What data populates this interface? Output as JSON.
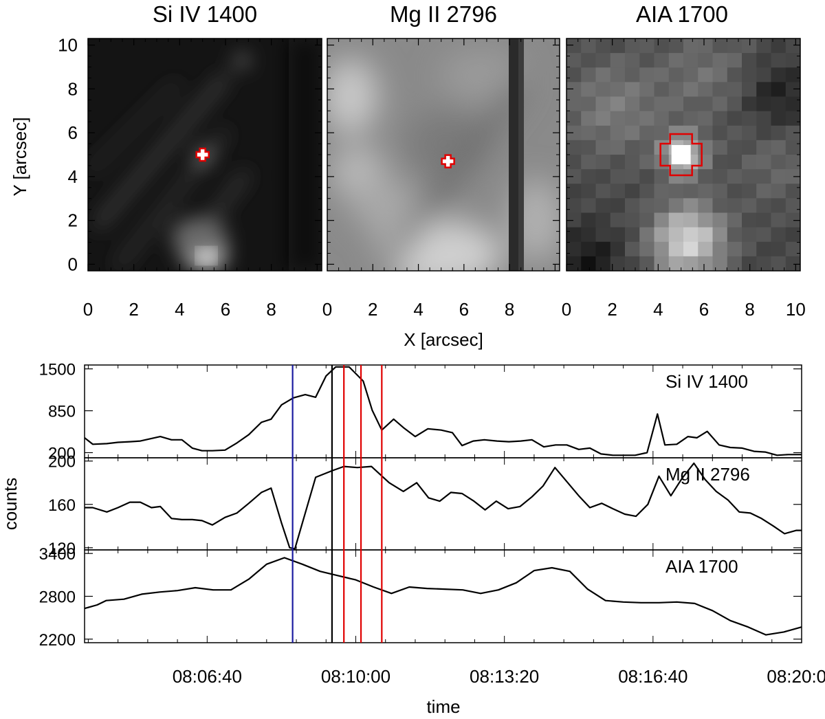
{
  "image_panels": {
    "xlabel": "X [arcsec]",
    "ylabel": "Y [arcsec]",
    "tick_labels": [
      "0",
      "2",
      "4",
      "6",
      "8",
      "10"
    ],
    "panels": [
      {
        "title": "Si IV 1400",
        "xlim": [
          0,
          10.2
        ],
        "ylim": [
          -0.3,
          10.3
        ],
        "x_ticks": [
          "0",
          "2",
          "4",
          "6",
          "8"
        ],
        "marker": {
          "x": 5.0,
          "y": 5.0,
          "color": "#e00000"
        }
      },
      {
        "title": "Mg II 2796",
        "xlim": [
          0,
          10.2
        ],
        "ylim": [
          -0.3,
          10.3
        ],
        "x_ticks": [
          "0",
          "2",
          "4",
          "6",
          "8"
        ],
        "marker": {
          "x": 5.3,
          "y": 4.7,
          "color": "#e00000"
        }
      },
      {
        "title": "AIA 1700",
        "xlim": [
          0,
          10.2
        ],
        "ylim": [
          -0.3,
          10.3
        ],
        "x_ticks": [
          "0",
          "2",
          "4",
          "6",
          "8",
          "10"
        ],
        "marker": {
          "x": 5.0,
          "y": 5.0,
          "color": "#e00000"
        }
      }
    ]
  },
  "chart_data": {
    "type": "line",
    "xlabel": "time",
    "ylabel": "counts",
    "x_unit": "clock time",
    "xlim": [
      "08:03:55",
      "08:20:00"
    ],
    "time_ticks": [
      "08:06:40",
      "08:10:00",
      "08:13:20",
      "08:16:40",
      "08:20:00"
    ],
    "vertical_lines": [
      {
        "time": "08:08:35",
        "color": "#1a1aa0"
      },
      {
        "time": "08:09:28",
        "color": "#000000"
      },
      {
        "time": "08:09:44",
        "color": "#e00000"
      },
      {
        "time": "08:10:07",
        "color": "#e00000"
      },
      {
        "time": "08:10:35",
        "color": "#e00000"
      }
    ],
    "series": [
      {
        "name": "Si IV 1400",
        "ylim": [
          120,
          1560
        ],
        "y_ticks": [
          "200",
          "850",
          "1500"
        ],
        "points": [
          [
            "08:03:55",
            430
          ],
          [
            "08:04:06",
            330
          ],
          [
            "08:04:25",
            340
          ],
          [
            "08:04:40",
            360
          ],
          [
            "08:04:56",
            370
          ],
          [
            "08:05:10",
            380
          ],
          [
            "08:05:25",
            420
          ],
          [
            "08:05:37",
            450
          ],
          [
            "08:05:52",
            400
          ],
          [
            "08:06:06",
            400
          ],
          [
            "08:06:20",
            270
          ],
          [
            "08:06:33",
            230
          ],
          [
            "08:06:47",
            230
          ],
          [
            "08:07:04",
            240
          ],
          [
            "08:07:20",
            350
          ],
          [
            "08:07:36",
            480
          ],
          [
            "08:07:53",
            670
          ],
          [
            "08:08:06",
            720
          ],
          [
            "08:08:20",
            940
          ],
          [
            "08:08:36",
            1050
          ],
          [
            "08:08:52",
            1100
          ],
          [
            "08:09:06",
            1060
          ],
          [
            "08:09:20",
            1390
          ],
          [
            "08:09:33",
            1530
          ],
          [
            "08:09:51",
            1530
          ],
          [
            "08:10:10",
            1310
          ],
          [
            "08:10:22",
            860
          ],
          [
            "08:10:35",
            550
          ],
          [
            "08:10:51",
            720
          ],
          [
            "08:11:05",
            580
          ],
          [
            "08:11:20",
            450
          ],
          [
            "08:11:37",
            570
          ],
          [
            "08:11:55",
            550
          ],
          [
            "08:12:10",
            510
          ],
          [
            "08:12:23",
            310
          ],
          [
            "08:12:38",
            380
          ],
          [
            "08:12:53",
            400
          ],
          [
            "08:13:10",
            380
          ],
          [
            "08:13:26",
            370
          ],
          [
            "08:13:42",
            380
          ],
          [
            "08:13:57",
            400
          ],
          [
            "08:14:13",
            290
          ],
          [
            "08:14:29",
            320
          ],
          [
            "08:14:44",
            320
          ],
          [
            "08:15:00",
            250
          ],
          [
            "08:15:15",
            270
          ],
          [
            "08:15:30",
            180
          ],
          [
            "08:15:46",
            160
          ],
          [
            "08:16:01",
            160
          ],
          [
            "08:16:16",
            160
          ],
          [
            "08:16:32",
            200
          ],
          [
            "08:16:46",
            800
          ],
          [
            "08:16:56",
            320
          ],
          [
            "08:17:12",
            330
          ],
          [
            "08:17:27",
            450
          ],
          [
            "08:17:39",
            430
          ],
          [
            "08:17:53",
            530
          ],
          [
            "08:18:09",
            320
          ],
          [
            "08:18:24",
            280
          ],
          [
            "08:18:40",
            270
          ],
          [
            "08:18:56",
            220
          ],
          [
            "08:19:11",
            210
          ],
          [
            "08:19:27",
            160
          ],
          [
            "08:19:42",
            170
          ],
          [
            "08:20:00",
            170
          ]
        ]
      },
      {
        "name": "Mg II 2796",
        "ylim": [
          118,
          203
        ],
        "y_ticks": [
          "120",
          "160",
          "200"
        ],
        "points": [
          [
            "08:03:55",
            157
          ],
          [
            "08:04:06",
            157
          ],
          [
            "08:04:25",
            153
          ],
          [
            "08:04:40",
            157
          ],
          [
            "08:04:56",
            162
          ],
          [
            "08:05:10",
            162
          ],
          [
            "08:05:25",
            157
          ],
          [
            "08:05:37",
            158
          ],
          [
            "08:05:52",
            147
          ],
          [
            "08:06:06",
            146
          ],
          [
            "08:06:20",
            146
          ],
          [
            "08:06:33",
            145
          ],
          [
            "08:06:47",
            141
          ],
          [
            "08:07:04",
            148
          ],
          [
            "08:07:20",
            152
          ],
          [
            "08:07:36",
            161
          ],
          [
            "08:07:53",
            171
          ],
          [
            "08:08:06",
            175
          ],
          [
            "08:08:20",
            143
          ],
          [
            "08:08:31",
            120
          ],
          [
            "08:08:38",
            119
          ],
          [
            "08:09:06",
            185
          ],
          [
            "08:09:28",
            191
          ],
          [
            "08:09:44",
            195
          ],
          [
            "08:10:02",
            194
          ],
          [
            "08:10:21",
            195
          ],
          [
            "08:10:45",
            180
          ],
          [
            "08:11:04",
            172
          ],
          [
            "08:11:22",
            180
          ],
          [
            "08:11:38",
            166
          ],
          [
            "08:11:53",
            163
          ],
          [
            "08:12:08",
            171
          ],
          [
            "08:12:23",
            170
          ],
          [
            "08:12:39",
            163
          ],
          [
            "08:12:54",
            155
          ],
          [
            "08:13:09",
            163
          ],
          [
            "08:13:25",
            156
          ],
          [
            "08:13:41",
            158
          ],
          [
            "08:13:57",
            167
          ],
          [
            "08:14:12",
            177
          ],
          [
            "08:14:28",
            194
          ],
          [
            "08:14:44",
            181
          ],
          [
            "08:15:00",
            168
          ],
          [
            "08:15:15",
            157
          ],
          [
            "08:15:31",
            161
          ],
          [
            "08:15:46",
            156
          ],
          [
            "08:16:02",
            151
          ],
          [
            "08:16:17",
            149
          ],
          [
            "08:16:33",
            160
          ],
          [
            "08:16:48",
            186
          ],
          [
            "08:17:04",
            168
          ],
          [
            "08:17:19",
            184
          ],
          [
            "08:17:35",
            198
          ],
          [
            "08:17:50",
            183
          ],
          [
            "08:18:05",
            172
          ],
          [
            "08:18:21",
            164
          ],
          [
            "08:18:36",
            153
          ],
          [
            "08:18:51",
            152
          ],
          [
            "08:19:06",
            147
          ],
          [
            "08:19:22",
            140
          ],
          [
            "08:19:37",
            133
          ],
          [
            "08:19:53",
            136
          ],
          [
            "08:20:00",
            136
          ]
        ]
      },
      {
        "name": "AIA 1700",
        "ylim": [
          2150,
          3450
        ],
        "y_ticks": [
          "2200",
          "2800",
          "3400"
        ],
        "points": [
          [
            "08:03:55",
            2630
          ],
          [
            "08:04:12",
            2680
          ],
          [
            "08:04:24",
            2740
          ],
          [
            "08:04:48",
            2760
          ],
          [
            "08:05:12",
            2830
          ],
          [
            "08:05:36",
            2860
          ],
          [
            "08:06:00",
            2880
          ],
          [
            "08:06:24",
            2920
          ],
          [
            "08:06:48",
            2890
          ],
          [
            "08:07:12",
            2890
          ],
          [
            "08:07:36",
            3040
          ],
          [
            "08:08:00",
            3250
          ],
          [
            "08:08:24",
            3340
          ],
          [
            "08:08:48",
            3250
          ],
          [
            "08:09:12",
            3150
          ],
          [
            "08:09:36",
            3090
          ],
          [
            "08:10:00",
            3030
          ],
          [
            "08:10:24",
            2930
          ],
          [
            "08:10:48",
            2840
          ],
          [
            "08:11:12",
            2930
          ],
          [
            "08:11:36",
            2910
          ],
          [
            "08:12:00",
            2900
          ],
          [
            "08:12:24",
            2890
          ],
          [
            "08:12:48",
            2840
          ],
          [
            "08:13:12",
            2890
          ],
          [
            "08:13:36",
            2990
          ],
          [
            "08:14:00",
            3160
          ],
          [
            "08:14:24",
            3200
          ],
          [
            "08:14:48",
            3150
          ],
          [
            "08:15:12",
            2900
          ],
          [
            "08:15:36",
            2740
          ],
          [
            "08:16:00",
            2720
          ],
          [
            "08:16:24",
            2710
          ],
          [
            "08:16:48",
            2710
          ],
          [
            "08:17:12",
            2720
          ],
          [
            "08:17:36",
            2700
          ],
          [
            "08:18:00",
            2600
          ],
          [
            "08:18:24",
            2460
          ],
          [
            "08:18:48",
            2370
          ],
          [
            "08:19:12",
            2260
          ],
          [
            "08:19:36",
            2300
          ],
          [
            "08:20:00",
            2370
          ]
        ]
      }
    ]
  }
}
